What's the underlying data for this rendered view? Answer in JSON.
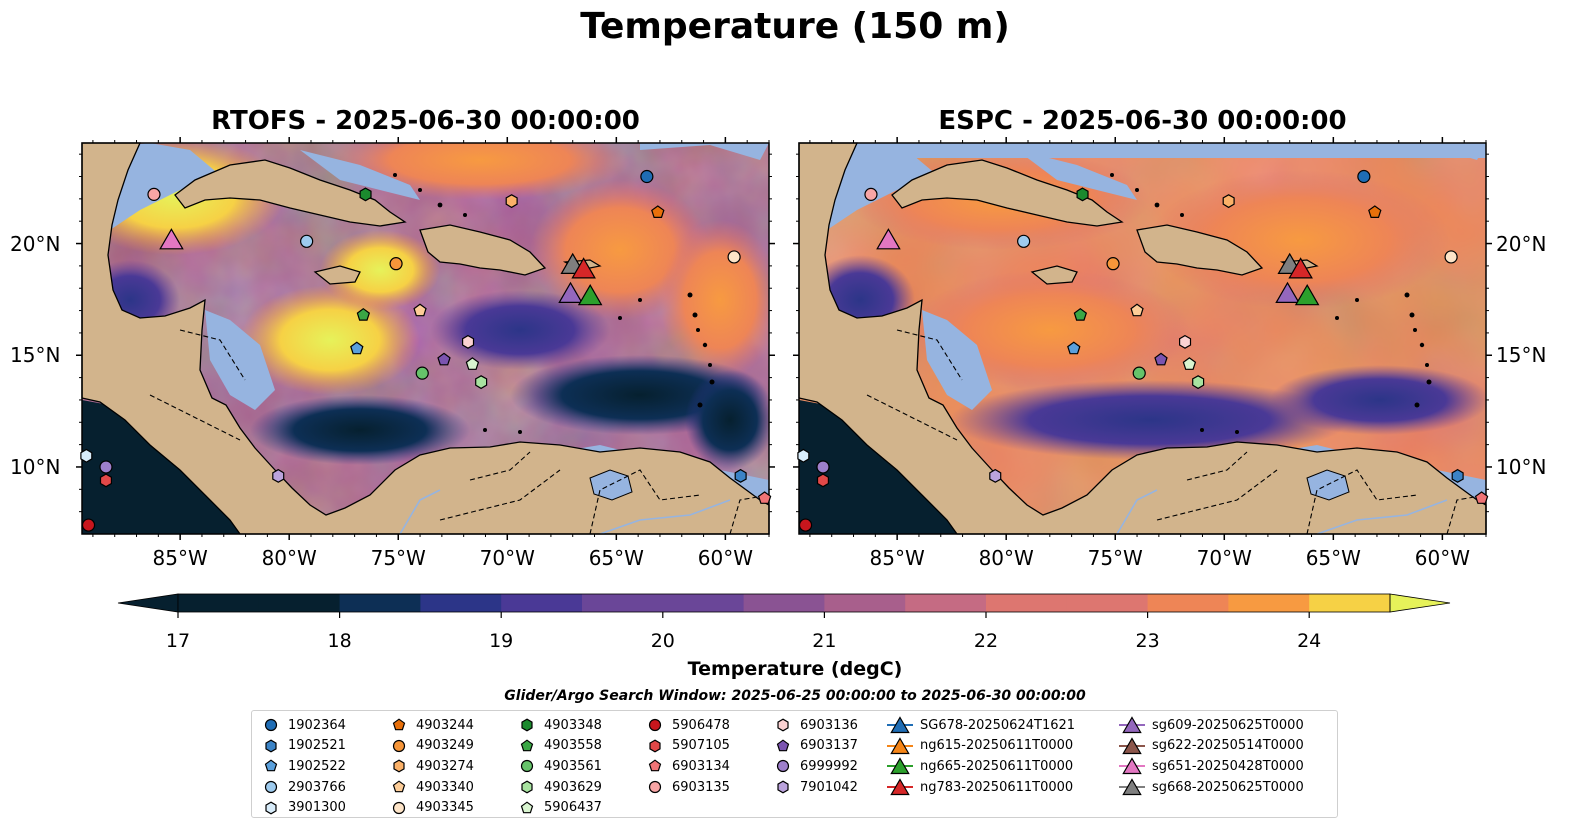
{
  "figure": {
    "title": "Temperature (150 m)"
  },
  "panels": [
    {
      "title": "RTOFS - 2025-06-30 00:00:00"
    },
    {
      "title": "ESPC - 2025-06-30 00:00:00"
    }
  ],
  "axes": {
    "lon_ticks": [
      "85°W",
      "80°W",
      "75°W",
      "70°W",
      "65°W",
      "60°W"
    ],
    "lon_values": [
      -85,
      -80,
      -75,
      -70,
      -65,
      -60
    ],
    "lat_ticks": [
      "20°N",
      "15°N",
      "10°N"
    ],
    "lat_values": [
      20,
      15,
      10
    ],
    "lon_range": [
      -89.5,
      -58.0
    ],
    "lat_range": [
      7.0,
      24.5
    ]
  },
  "colorbar": {
    "label": "Temperature (degC)",
    "ticks": [
      "17",
      "18",
      "19",
      "20",
      "21",
      "22",
      "23",
      "24"
    ],
    "range": [
      17,
      24.5
    ],
    "step": 0.25,
    "extend": "both",
    "colors": [
      "#06202f",
      "#0d2f55",
      "#2c3588",
      "#4a3996",
      "#6a4698",
      "#8a5393",
      "#a85f8c",
      "#c56b83",
      "#dd7670",
      "#ee8556",
      "#f79a41",
      "#fbb23d",
      "#f6d145",
      "#e6f25a"
    ]
  },
  "legend": {
    "title": "Glider/Argo Search Window: 2025-06-25 00:00:00 to 2025-06-30 00:00:00",
    "columns": [
      [
        {
          "label": "1902364",
          "marker": "circle",
          "color": "#1f6db5"
        },
        {
          "label": "1902521",
          "marker": "hexagon",
          "color": "#3b83c6"
        },
        {
          "label": "1902522",
          "marker": "pentagon",
          "color": "#5aa0dc"
        },
        {
          "label": "2903766",
          "marker": "circle",
          "color": "#9ecbee"
        },
        {
          "label": "3901300",
          "marker": "hexagon",
          "color": "#d8ecfa"
        }
      ],
      [
        {
          "label": "4903244",
          "marker": "pentagon",
          "color": "#e8700a"
        },
        {
          "label": "4903249",
          "marker": "circle",
          "color": "#f6963a"
        },
        {
          "label": "4903274",
          "marker": "hexagon",
          "color": "#fbb168"
        },
        {
          "label": "4903340",
          "marker": "pentagon",
          "color": "#fdcd98"
        },
        {
          "label": "4903345",
          "marker": "circle",
          "color": "#fde4c8"
        }
      ],
      [
        {
          "label": "4903348",
          "marker": "hexagon",
          "color": "#1b8a2e"
        },
        {
          "label": "4903558",
          "marker": "pentagon",
          "color": "#3aa745"
        },
        {
          "label": "4903561",
          "marker": "circle",
          "color": "#66c36a"
        },
        {
          "label": "4903629",
          "marker": "hexagon",
          "color": "#a8e3a0"
        },
        {
          "label": "5906437",
          "marker": "pentagon",
          "color": "#d9f5d0"
        }
      ],
      [
        {
          "label": "5906478",
          "marker": "circle",
          "color": "#c8161d"
        },
        {
          "label": "5907105",
          "marker": "hexagon",
          "color": "#e24848"
        },
        {
          "label": "6903134",
          "marker": "pentagon",
          "color": "#f07476"
        },
        {
          "label": "6903135",
          "marker": "circle",
          "color": "#f8a5a5"
        }
      ],
      [
        {
          "label": "6903136",
          "marker": "hexagon",
          "color": "#fbd2d2"
        },
        {
          "label": "6903137",
          "marker": "pentagon",
          "color": "#7b54b0"
        },
        {
          "label": "6999992",
          "marker": "circle",
          "color": "#9e7fcb"
        },
        {
          "label": "7901042",
          "marker": "hexagon",
          "color": "#bba3dc"
        }
      ],
      [
        {
          "label": "SG678-20250624T1621",
          "marker": "triangle",
          "color": "#1f6db5"
        },
        {
          "label": "ng615-20250611T0000",
          "marker": "triangle",
          "color": "#f58518"
        },
        {
          "label": "ng665-20250611T0000",
          "marker": "triangle",
          "color": "#2ca02c"
        },
        {
          "label": "ng783-20250611T0000",
          "marker": "triangle",
          "color": "#d62728"
        }
      ],
      [
        {
          "label": "sg609-20250625T0000",
          "marker": "triangle",
          "color": "#9467bd"
        },
        {
          "label": "sg622-20250514T0000",
          "marker": "triangle",
          "color": "#8c564b"
        },
        {
          "label": "sg651-20250428T0000",
          "marker": "triangle",
          "color": "#e377c2"
        },
        {
          "label": "sg668-20250625T0000",
          "marker": "triangle",
          "color": "#7f7f7f"
        }
      ]
    ]
  },
  "argo_floats": [
    {
      "id": "1902364",
      "lon": -63.6,
      "lat": 23.0
    },
    {
      "id": "1902521",
      "lon": -59.3,
      "lat": 9.6
    },
    {
      "id": "1902522",
      "lon": -76.9,
      "lat": 15.3
    },
    {
      "id": "2903766",
      "lon": -79.2,
      "lat": 20.1
    },
    {
      "id": "3901300",
      "lon": -89.3,
      "lat": 10.5
    },
    {
      "id": "4903244",
      "lon": -63.1,
      "lat": 21.4
    },
    {
      "id": "4903249",
      "lon": -75.1,
      "lat": 19.1
    },
    {
      "id": "4903274",
      "lon": -69.8,
      "lat": 21.9
    },
    {
      "id": "4903340",
      "lon": -74.0,
      "lat": 17.0
    },
    {
      "id": "4903345",
      "lon": -59.6,
      "lat": 19.4
    },
    {
      "id": "4903348",
      "lon": -76.5,
      "lat": 22.2
    },
    {
      "id": "4903558",
      "lon": -76.6,
      "lat": 16.8
    },
    {
      "id": "4903561",
      "lon": -73.9,
      "lat": 14.2
    },
    {
      "id": "4903629",
      "lon": -71.2,
      "lat": 13.8
    },
    {
      "id": "5906437",
      "lon": -71.6,
      "lat": 14.6
    },
    {
      "id": "5906478",
      "lon": -89.2,
      "lat": 7.4
    },
    {
      "id": "5907105",
      "lon": -88.4,
      "lat": 9.4
    },
    {
      "id": "6903134",
      "lon": -58.2,
      "lat": 8.6
    },
    {
      "id": "6903135",
      "lon": -86.2,
      "lat": 22.2
    },
    {
      "id": "6903136",
      "lon": -71.8,
      "lat": 15.6
    },
    {
      "id": "6903137",
      "lon": -72.9,
      "lat": 14.8
    },
    {
      "id": "6999992",
      "lon": -88.4,
      "lat": 10.0
    },
    {
      "id": "7901042",
      "lon": -80.5,
      "lat": 9.6
    }
  ],
  "gliders": [
    {
      "id": "sg651-20250428T0000",
      "lon": -85.4,
      "lat": 20.2
    },
    {
      "id": "sg668-20250625T0000",
      "lon": -67.0,
      "lat": 19.1
    },
    {
      "id": "ng783-20250611T0000",
      "lon": -66.5,
      "lat": 18.9
    },
    {
      "id": "sg609-20250625T0000",
      "lon": -67.1,
      "lat": 17.8
    },
    {
      "id": "ng665-20250611T0000",
      "lon": -66.2,
      "lat": 17.7
    }
  ]
}
